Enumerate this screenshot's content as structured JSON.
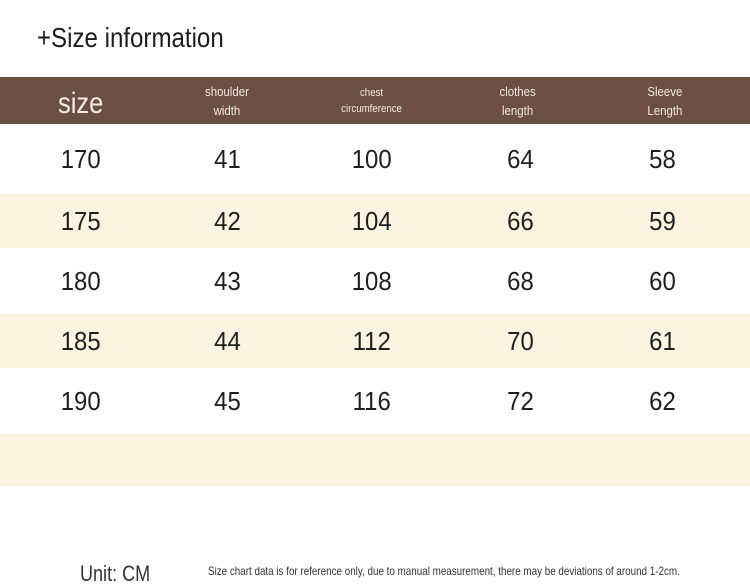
{
  "title": "+Size information",
  "colors": {
    "header_bg": "#6b4f45",
    "header_text": "#f4e9dd",
    "row_alt_bg": "#fdf3e1",
    "row_bg": "#ffffff"
  },
  "table": {
    "headers": [
      "size",
      "shoulder\nwidth",
      "chest\ncircumference",
      "clothes\nlength",
      "Sleeve\nLength"
    ],
    "rows": [
      [
        "170",
        "41",
        "100",
        "64",
        "58"
      ],
      [
        "175",
        "42",
        "104",
        "66",
        "59"
      ],
      [
        "180",
        "43",
        "108",
        "68",
        "60"
      ],
      [
        "185",
        "44",
        "112",
        "70",
        "61"
      ],
      [
        "190",
        "45",
        "116",
        "72",
        "62"
      ]
    ]
  },
  "footer": {
    "unit": "Unit: CM",
    "note": "Size chart data is for reference only, due to manual measurement, there may be deviations of around 1-2cm."
  }
}
